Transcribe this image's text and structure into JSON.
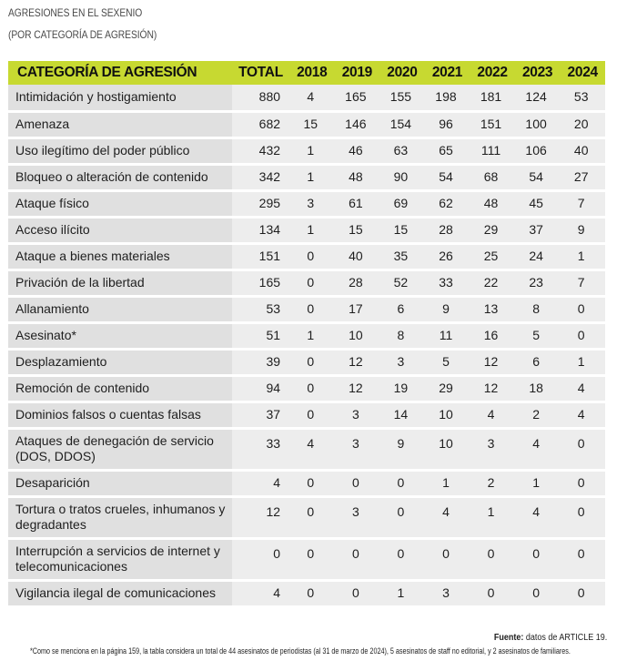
{
  "title": {
    "line1": "AGRESIONES EN EL SEXENIO",
    "line2": "(POR CATEGORÍA DE AGRESIÓN)"
  },
  "table": {
    "headers": [
      "CATEGORÍA DE AGRESIÓN",
      "TOTAL",
      "2018",
      "2019",
      "2020",
      "2021",
      "2022",
      "2023",
      "2024"
    ],
    "rows": [
      {
        "category": "Intimidación y hostigamiento",
        "values": [
          "880",
          "4",
          "165",
          "155",
          "198",
          "181",
          "124",
          "53"
        ]
      },
      {
        "category": "Amenaza",
        "values": [
          "682",
          "15",
          "146",
          "154",
          "96",
          "151",
          "100",
          "20"
        ]
      },
      {
        "category": "Uso ilegítimo del poder público",
        "values": [
          "432",
          "1",
          "46",
          "63",
          "65",
          "111",
          "106",
          "40"
        ]
      },
      {
        "category": "Bloqueo o alteración de contenido",
        "values": [
          "342",
          "1",
          "48",
          "90",
          "54",
          "68",
          "54",
          "27"
        ]
      },
      {
        "category": "Ataque físico",
        "values": [
          "295",
          "3",
          "61",
          "69",
          "62",
          "48",
          "45",
          "7"
        ]
      },
      {
        "category": "Acceso ilícito",
        "values": [
          "134",
          "1",
          "15",
          "15",
          "28",
          "29",
          "37",
          "9"
        ]
      },
      {
        "category": "Ataque a bienes materiales",
        "values": [
          "151",
          "0",
          "40",
          "35",
          "26",
          "25",
          "24",
          "1"
        ]
      },
      {
        "category": "Privación de la libertad",
        "values": [
          "165",
          "0",
          "28",
          "52",
          "33",
          "22",
          "23",
          "7"
        ]
      },
      {
        "category": "Allanamiento",
        "values": [
          "53",
          "0",
          "17",
          "6",
          "9",
          "13",
          "8",
          "0"
        ]
      },
      {
        "category": "Asesinato*",
        "values": [
          "51",
          "1",
          "10",
          "8",
          "11",
          "16",
          "5",
          "0"
        ]
      },
      {
        "category": "Desplazamiento",
        "values": [
          "39",
          "0",
          "12",
          "3",
          "5",
          "12",
          "6",
          "1"
        ]
      },
      {
        "category": "Remoción de contenido",
        "values": [
          "94",
          "0",
          "12",
          "19",
          "29",
          "12",
          "18",
          "4"
        ]
      },
      {
        "category": "Dominios falsos o cuentas falsas",
        "values": [
          "37",
          "0",
          "3",
          "14",
          "10",
          "4",
          "2",
          "4"
        ]
      },
      {
        "category": "Ataques de denegación de servicio (DOS, DDOS)",
        "values": [
          "33",
          "4",
          "3",
          "9",
          "10",
          "3",
          "4",
          "0"
        ]
      },
      {
        "category": "Desaparición",
        "values": [
          "4",
          "0",
          "0",
          "0",
          "1",
          "2",
          "1",
          "0"
        ]
      },
      {
        "category": "Tortura o tratos crueles, inhumanos y degradantes",
        "values": [
          "12",
          "0",
          "3",
          "0",
          "4",
          "1",
          "4",
          "0"
        ]
      },
      {
        "category": "Interrupción a servicios de internet y telecomunicaciones",
        "values": [
          "0",
          "0",
          "0",
          "0",
          "0",
          "0",
          "0",
          "0"
        ]
      },
      {
        "category": "Vigilancia ilegal de comunicaciones",
        "values": [
          "4",
          "0",
          "0",
          "1",
          "3",
          "0",
          "0",
          "0"
        ]
      }
    ]
  },
  "footnotes": {
    "source_label": "Fuente:",
    "source_text": " datos de ARTICLE 19.",
    "note": "*Como se menciona en la página 159, la tabla considera un total de 44 asesinatos de periodistas (al 31 de marzo de 2024), 5 asesinatos de staff no editorial, y 2 asesinatos de familiares."
  },
  "colors": {
    "header_bg": "#c7d931",
    "category_cell_bg": "#e0e0e0",
    "number_cell_bg": "#ededed"
  }
}
